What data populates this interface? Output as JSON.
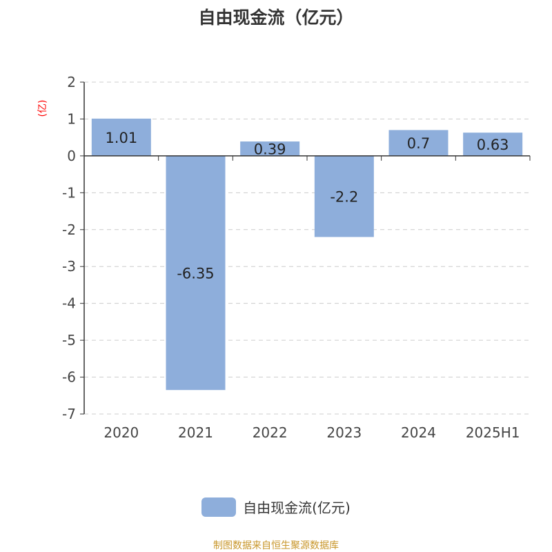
{
  "chart_data": {
    "type": "bar",
    "title": "自由现金流（亿元）",
    "ylabel": "(亿)",
    "xlabel": "",
    "categories": [
      "2020",
      "2021",
      "2022",
      "2023",
      "2024",
      "2025H1"
    ],
    "series": [
      {
        "name": "自由现金流(亿元)",
        "values": [
          1.01,
          -6.35,
          0.39,
          -2.2,
          0.7,
          0.63
        ]
      }
    ],
    "data_labels": [
      "1.01",
      "-6.35",
      "0.39",
      "-2.2",
      "0.7",
      "0.63"
    ],
    "ylim": [
      -7,
      2
    ],
    "yticks": [
      2,
      1,
      0,
      -1,
      -2,
      -3,
      -4,
      -5,
      -6,
      -7
    ],
    "grid": true,
    "legend": "bottom",
    "colors": {
      "bar": "#8eaedb",
      "ylabel": "#ff0000",
      "source": "#c8962a"
    }
  },
  "source": "制图数据来自恒生聚源数据库"
}
